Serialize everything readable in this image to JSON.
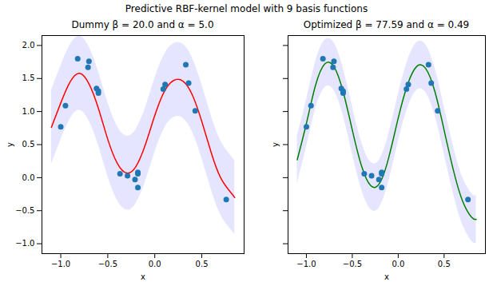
{
  "title": "Predictive RBF-kernel model with 9 basis functions",
  "chart_data": [
    {
      "type": "line",
      "title": "Dummy β = 20.0 and α = 5.0",
      "x_label": "x",
      "y_label": "y",
      "xlim": [
        -1.2,
        0.95
      ],
      "ylim": [
        -1.15,
        2.15
      ],
      "xticks": [
        {
          "value": -1.0,
          "label": "−1.0"
        },
        {
          "value": -0.5,
          "label": "−0.5"
        },
        {
          "value": 0.0,
          "label": "0.0"
        },
        {
          "value": 0.5,
          "label": "0.5"
        }
      ],
      "yticks": [
        {
          "value": -1.0,
          "label": "−1.0"
        },
        {
          "value": -0.5,
          "label": "−0.5"
        },
        {
          "value": 0.0,
          "label": "0.0"
        },
        {
          "value": 0.5,
          "label": "0.5"
        },
        {
          "value": 1.0,
          "label": "1.0"
        },
        {
          "value": 1.5,
          "label": "1.5"
        },
        {
          "value": 2.0,
          "label": "2.0"
        }
      ],
      "series": [
        {
          "type": "area",
          "color": "blue",
          "x": [
            -1.1,
            -1.0,
            -0.9,
            -0.8,
            -0.7,
            -0.6,
            -0.5,
            -0.4,
            -0.3,
            -0.2,
            -0.1,
            0.0,
            0.1,
            0.2,
            0.3,
            0.4,
            0.5,
            0.6,
            0.7,
            0.8,
            0.85
          ],
          "lower": [
            0.2,
            0.57,
            0.89,
            1.02,
            0.86,
            0.49,
            0.02,
            -0.34,
            -0.49,
            -0.39,
            -0.06,
            0.38,
            0.74,
            0.91,
            0.9,
            0.69,
            0.29,
            -0.18,
            -0.56,
            -0.77,
            -0.86
          ],
          "upper": [
            1.32,
            1.69,
            2.01,
            2.14,
            1.98,
            1.61,
            1.14,
            0.78,
            0.63,
            0.73,
            1.06,
            1.5,
            1.86,
            2.03,
            2.02,
            1.81,
            1.41,
            0.94,
            0.56,
            0.35,
            0.26
          ]
        },
        {
          "type": "line",
          "color": "red",
          "x": [
            -1.1,
            -1.0,
            -0.9,
            -0.8,
            -0.7,
            -0.6,
            -0.5,
            -0.4,
            -0.3,
            -0.2,
            -0.1,
            0.0,
            0.1,
            0.2,
            0.3,
            0.4,
            0.5,
            0.6,
            0.7,
            0.8,
            0.85
          ],
          "values": [
            0.76,
            1.13,
            1.45,
            1.58,
            1.42,
            1.05,
            0.58,
            0.22,
            0.07,
            0.17,
            0.5,
            0.94,
            1.3,
            1.47,
            1.46,
            1.25,
            0.85,
            0.38,
            0.0,
            -0.21,
            -0.3
          ]
        },
        {
          "type": "scatter",
          "color": "#1f77b4",
          "x": [
            -1.0,
            -0.95,
            -0.82,
            -0.71,
            -0.7,
            -0.62,
            -0.6,
            -0.6,
            -0.37,
            -0.29,
            -0.21,
            -0.18,
            -0.18,
            -0.18,
            0.09,
            0.11,
            0.33,
            0.36,
            0.43,
            0.76
          ],
          "values": [
            0.77,
            1.09,
            1.8,
            1.67,
            1.76,
            1.35,
            1.28,
            1.31,
            0.06,
            0.03,
            -0.03,
            0.08,
            0.06,
            -0.15,
            1.34,
            1.41,
            1.71,
            1.43,
            1.01,
            -0.33
          ]
        }
      ]
    },
    {
      "type": "line",
      "title": "Optimized β = 77.59 and α = 0.49",
      "x_label": "x",
      "y_label": "y",
      "tick_labels": "x",
      "xlim": [
        -1.2,
        0.95
      ],
      "ylim": [
        -1.15,
        2.15
      ],
      "xticks": [
        {
          "value": -1.0,
          "label": "−1.0"
        },
        {
          "value": -0.5,
          "label": "−0.5"
        },
        {
          "value": 0.0,
          "label": "0.0"
        },
        {
          "value": 0.5,
          "label": "0.5"
        }
      ],
      "yticks": [
        -1.0,
        -0.5,
        0.0,
        0.5,
        1.0,
        1.5,
        2.0
      ],
      "series": [
        {
          "type": "area",
          "color": "blue",
          "x": [
            -1.1,
            -1.0,
            -0.9,
            -0.8,
            -0.7,
            -0.6,
            -0.5,
            -0.4,
            -0.3,
            -0.2,
            -0.1,
            0.0,
            0.1,
            0.2,
            0.3,
            0.4,
            0.5,
            0.6,
            0.7,
            0.8,
            0.85
          ],
          "lower": [
            -0.09,
            0.46,
            1.04,
            1.36,
            1.32,
            0.94,
            0.36,
            -0.18,
            -0.48,
            -0.44,
            -0.04,
            0.54,
            1.04,
            1.32,
            1.29,
            0.94,
            0.36,
            -0.24,
            -0.71,
            -0.96,
            -0.99
          ],
          "upper": [
            0.63,
            1.18,
            1.76,
            2.08,
            2.04,
            1.66,
            1.08,
            0.54,
            0.24,
            0.28,
            0.68,
            1.26,
            1.76,
            2.04,
            2.01,
            1.66,
            1.08,
            0.48,
            0.01,
            -0.24,
            -0.27
          ]
        },
        {
          "type": "line",
          "color": "green",
          "x": [
            -1.1,
            -1.0,
            -0.9,
            -0.8,
            -0.7,
            -0.6,
            -0.5,
            -0.4,
            -0.3,
            -0.2,
            -0.1,
            0.0,
            0.1,
            0.2,
            0.3,
            0.4,
            0.5,
            0.6,
            0.7,
            0.8,
            0.85
          ],
          "values": [
            0.27,
            0.82,
            1.4,
            1.72,
            1.68,
            1.3,
            0.72,
            0.18,
            -0.12,
            -0.08,
            0.32,
            0.9,
            1.4,
            1.68,
            1.65,
            1.3,
            0.72,
            0.12,
            -0.35,
            -0.6,
            -0.63
          ]
        },
        {
          "type": "scatter",
          "color": "#1f77b4",
          "x": [
            -1.0,
            -0.95,
            -0.82,
            -0.71,
            -0.7,
            -0.62,
            -0.6,
            -0.6,
            -0.37,
            -0.29,
            -0.21,
            -0.18,
            -0.18,
            -0.18,
            0.09,
            0.11,
            0.33,
            0.36,
            0.43,
            0.76
          ],
          "values": [
            0.77,
            1.09,
            1.8,
            1.67,
            1.76,
            1.35,
            1.28,
            1.31,
            0.06,
            0.03,
            -0.03,
            0.08,
            0.06,
            -0.15,
            1.34,
            1.41,
            1.71,
            1.43,
            1.01,
            -0.33
          ]
        }
      ]
    }
  ]
}
